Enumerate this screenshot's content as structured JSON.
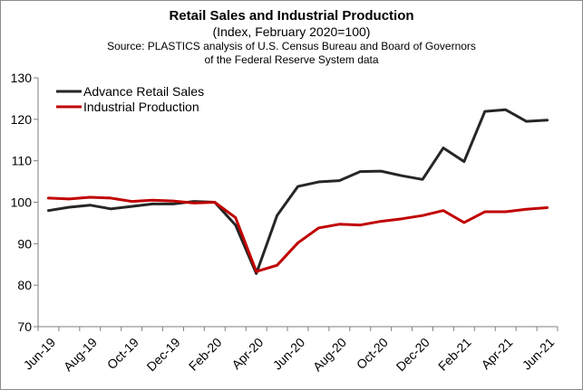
{
  "chart_data": {
    "type": "line",
    "title": "Retail Sales and Industrial Production",
    "subtitle": "(Index, February 2020=100)",
    "source_line1": "Source: PLASTICS analysis of U.S. Census Bureau and Board of Governors",
    "source_line2": "of the Federal Reserve System data",
    "xlabel": "",
    "ylabel": "",
    "ylim": [
      70,
      130
    ],
    "yticks": [
      70,
      80,
      90,
      100,
      110,
      120,
      130
    ],
    "grid": false,
    "legend": "top-left",
    "x": [
      "Jun-19",
      "Jul-19",
      "Aug-19",
      "Sep-19",
      "Oct-19",
      "Nov-19",
      "Dec-19",
      "Jan-20",
      "Feb-20",
      "Mar-20",
      "Apr-20",
      "May-20",
      "Jun-20",
      "Jul-20",
      "Aug-20",
      "Sep-20",
      "Oct-20",
      "Nov-20",
      "Dec-20",
      "Jan-21",
      "Feb-21",
      "Mar-21",
      "Apr-21",
      "May-21",
      "Jun-21"
    ],
    "tick_labels": [
      "Jun-19",
      "Aug-19",
      "Oct-19",
      "Dec-19",
      "Feb-20",
      "Apr-20",
      "Jun-20",
      "Aug-20",
      "Oct-20",
      "Dec-20",
      "Feb-21",
      "Apr-21",
      "Jun-21"
    ],
    "series": [
      {
        "name": "Advance Retail Sales",
        "color": "#262626",
        "values": [
          98.0,
          98.8,
          99.3,
          98.4,
          99.0,
          99.6,
          99.6,
          100.2,
          100.0,
          94.5,
          82.8,
          96.8,
          103.8,
          104.9,
          105.2,
          107.4,
          107.5,
          106.4,
          105.5,
          113.1,
          109.8,
          121.9,
          122.3,
          119.5,
          119.8
        ]
      },
      {
        "name": "Industrial Production",
        "color": "#c00000",
        "values": [
          101.0,
          100.8,
          101.2,
          101.0,
          100.2,
          100.5,
          100.3,
          99.8,
          100.0,
          96.3,
          83.3,
          84.8,
          90.2,
          93.8,
          94.7,
          94.5,
          95.4,
          96.0,
          96.8,
          98.0,
          95.1,
          97.7,
          97.7,
          98.3,
          98.7
        ]
      }
    ]
  }
}
